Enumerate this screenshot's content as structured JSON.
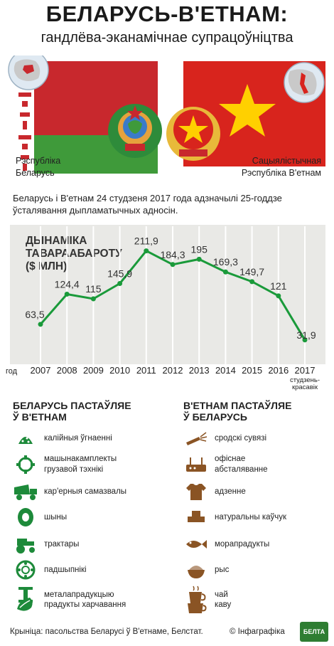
{
  "header": {
    "title": "БЕЛАРУСЬ-В'ЕТНАМ:",
    "subtitle": "гандлёва-эканамічнае супрацоўніцтва"
  },
  "countries": {
    "left": {
      "line1": "Рэспубліка",
      "line2": "Беларусь"
    },
    "right": {
      "line1": "Сацыялістычная",
      "line2": "Рэспубліка В'етнам"
    }
  },
  "intro": "Беларусь і В'етнам 24 студзеня 2017 года адзначылі 25-годдзе ўсталявання дыпламатычных адносін.",
  "chart_data": {
    "type": "line",
    "title": "ДЫНАМІКА ТАВАРААБАРОТУ ($ МЛН)",
    "title_line1": "ДЫНАМІКА",
    "title_line2": "ТАВАРААБАРОТУ",
    "title_line3": "($ МЛН)",
    "xlabel": "год",
    "categories": [
      "2007",
      "2008",
      "2009",
      "2010",
      "2011",
      "2012",
      "2013",
      "2014",
      "2015",
      "2016",
      "2017"
    ],
    "last_category_note": [
      "студзень-",
      "красавік"
    ],
    "values": [
      63.5,
      124.4,
      115,
      145.9,
      211.9,
      184.3,
      195,
      169.3,
      149.7,
      121,
      31.9
    ],
    "value_labels": [
      "63,5",
      "124,4",
      "115",
      "145,9",
      "211,9",
      "184,3",
      "195",
      "169,3",
      "149,7",
      "121",
      "31,9"
    ],
    "ylim": [
      0,
      230
    ],
    "line_color": "#1a9a3a",
    "background_color": "#e9e9e6"
  },
  "lists": {
    "left": {
      "head_line1": "БЕЛАРУСЬ ПАСТАЎЛЯЕ",
      "head_line2": "Ў В'ЕТНАМ",
      "icon_color": "#1d8a3a",
      "items": [
        {
          "label": "калійныя ўгнаенні",
          "icon": "fertilizer-icon"
        },
        {
          "label": "машынакамплекты грузавой тэхнікі",
          "label_line1": "машынакамплекты",
          "label_line2": "грузавой тэхнікі",
          "icon": "truck-kit-icon"
        },
        {
          "label": "кар'ерныя самазвалы",
          "icon": "dump-truck-icon"
        },
        {
          "label": "шыны",
          "icon": "tire-icon"
        },
        {
          "label": "трактары",
          "icon": "tractor-icon"
        },
        {
          "label": "падшыпнікі",
          "icon": "bearing-icon"
        },
        {
          "label": "металапрадукцыю",
          "icon": "metal-beam-icon"
        },
        {
          "label": "прадукты харчавання",
          "icon": "food-icon"
        }
      ]
    },
    "right": {
      "head_line1": "В'ЕТНАМ ПАСТАЎЛЯЕ",
      "head_line2": "Ў БЕЛАРУСЬ",
      "icon_color": "#8a5424",
      "items": [
        {
          "label": "сродскі сувязі",
          "icon": "cable-icon"
        },
        {
          "label": "офіснае абсталяванне",
          "label_line1": "офіснае",
          "label_line2": "абсталяванне",
          "icon": "router-icon"
        },
        {
          "label": "адзенне",
          "icon": "shirt-icon"
        },
        {
          "label": "натуральны каўчук",
          "icon": "rubber-icon"
        },
        {
          "label": "морапрадукты",
          "icon": "fish-icon"
        },
        {
          "label": "рыс",
          "icon": "rice-icon"
        },
        {
          "label": "чай",
          "icon": "tea-icon"
        },
        {
          "label": "каву",
          "icon": "coffee-icon"
        }
      ]
    }
  },
  "footer": {
    "source": "Крыніца: пасольства Беларусі ў В'етнаме, Белстат.",
    "credit": "© Інфаграфіка",
    "logo": "БЕЛТА"
  },
  "colors": {
    "belarus_red": "#c8282d",
    "belarus_green": "#3f9a3a",
    "vietnam_red": "#d8241d",
    "vietnam_star": "#ffd000"
  }
}
